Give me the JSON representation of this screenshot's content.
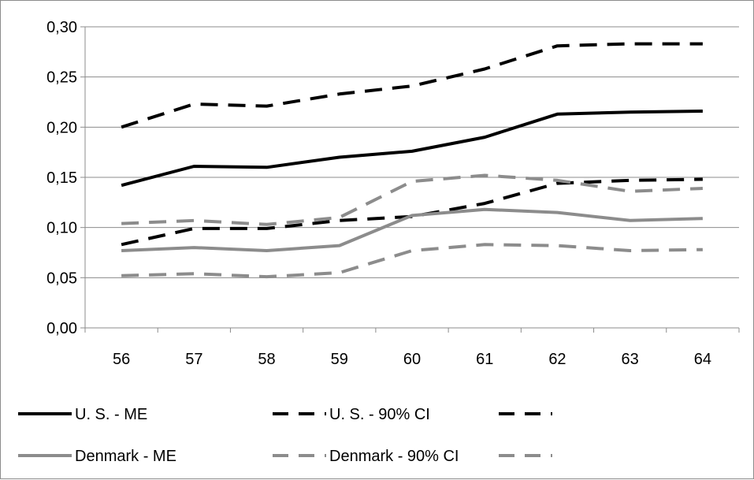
{
  "chart_data": {
    "type": "line",
    "title": "",
    "xlabel": "",
    "ylabel": "",
    "x": [
      "56",
      "57",
      "58",
      "59",
      "60",
      "61",
      "62",
      "63",
      "64"
    ],
    "ylim": [
      0,
      0.3
    ],
    "yticks": [
      "0,00",
      "0,05",
      "0,10",
      "0,15",
      "0,20",
      "0,25",
      "0,30"
    ],
    "grid": "horizontal",
    "legend_position": "bottom",
    "series": [
      {
        "name": "U. S. - ME",
        "color": "#000000",
        "style": "solid",
        "values": [
          0.142,
          0.161,
          0.16,
          0.17,
          0.176,
          0.19,
          0.213,
          0.215,
          0.216
        ]
      },
      {
        "name": "U. S. - 90% CI",
        "color": "#000000",
        "style": "dashed",
        "values": [
          0.2,
          0.223,
          0.221,
          0.233,
          0.241,
          0.258,
          0.281,
          0.283,
          0.283
        ]
      },
      {
        "name": "",
        "color": "#000000",
        "style": "dashed",
        "values": [
          0.083,
          0.099,
          0.099,
          0.107,
          0.111,
          0.124,
          0.144,
          0.147,
          0.148
        ]
      },
      {
        "name": "Denmark - ME",
        "color": "#8c8c8c",
        "style": "solid",
        "values": [
          0.077,
          0.08,
          0.077,
          0.082,
          0.112,
          0.118,
          0.115,
          0.107,
          0.109
        ]
      },
      {
        "name": "Denmark - 90% CI",
        "color": "#8c8c8c",
        "style": "dashed",
        "values": [
          0.104,
          0.107,
          0.103,
          0.11,
          0.146,
          0.152,
          0.147,
          0.136,
          0.139
        ]
      },
      {
        "name": "",
        "color": "#8c8c8c",
        "style": "dashed",
        "values": [
          0.052,
          0.054,
          0.051,
          0.055,
          0.077,
          0.083,
          0.082,
          0.077,
          0.078
        ]
      }
    ]
  }
}
